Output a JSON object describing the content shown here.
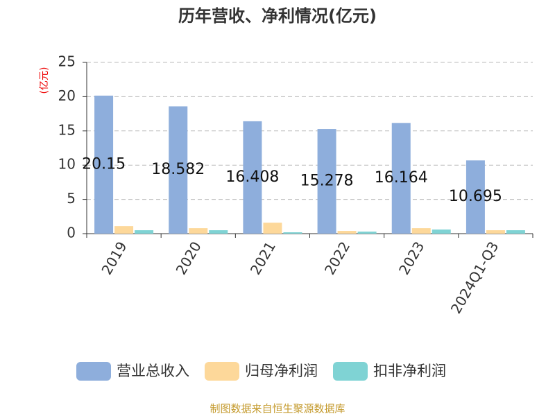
{
  "chart_data": {
    "type": "bar",
    "title": "历年营收、净利情况(亿元)",
    "y_label": "(亿元)",
    "categories": [
      "2019",
      "2020",
      "2021",
      "2022",
      "2023",
      "2024Q1-Q3"
    ],
    "series": [
      {
        "name": "营业总收入",
        "color": "#8eaedc",
        "values": [
          20.15,
          18.582,
          16.408,
          15.278,
          16.164,
          10.695
        ],
        "show_labels": true
      },
      {
        "name": "归母净利润",
        "color": "#fdd89a",
        "values": [
          1.1,
          0.8,
          1.6,
          0.4,
          0.8,
          0.5
        ]
      },
      {
        "name": "扣非净利润",
        "color": "#7fd3d4",
        "values": [
          0.5,
          0.5,
          0.2,
          0.3,
          0.6,
          0.5
        ]
      }
    ],
    "ylim": [
      0,
      25
    ],
    "yticks": [
      0,
      5,
      10,
      15,
      20,
      25
    ],
    "grid": true,
    "footer": "制图数据来自恒生聚源数据库"
  }
}
